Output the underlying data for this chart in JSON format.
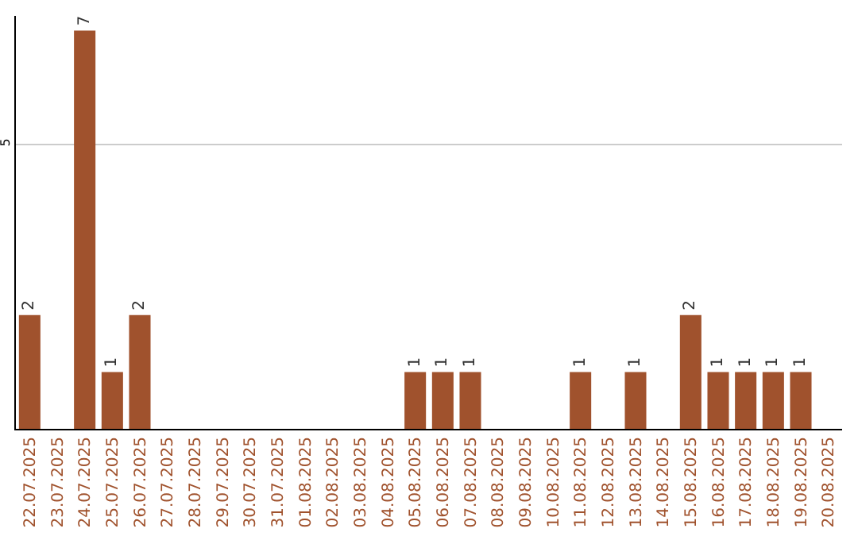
{
  "chart_data": {
    "type": "bar",
    "categories": [
      "22.07.2025",
      "23.07.2025",
      "24.07.2025",
      "25.07.2025",
      "26.07.2025",
      "27.07.2025",
      "28.07.2025",
      "29.07.2025",
      "30.07.2025",
      "31.07.2025",
      "01.08.2025",
      "02.08.2025",
      "03.08.2025",
      "04.08.2025",
      "05.08.2025",
      "06.08.2025",
      "07.08.2025",
      "08.08.2025",
      "09.08.2025",
      "10.08.2025",
      "11.08.2025",
      "12.08.2025",
      "13.08.2025",
      "14.08.2025",
      "15.08.2025",
      "16.08.2025",
      "17.08.2025",
      "18.08.2025",
      "19.08.2025",
      "20.08.2025"
    ],
    "values": [
      2,
      0,
      7,
      1,
      2,
      0,
      0,
      0,
      0,
      0,
      0,
      0,
      0,
      0,
      1,
      1,
      1,
      0,
      0,
      0,
      1,
      0,
      1,
      0,
      2,
      1,
      1,
      1,
      1,
      0
    ],
    "value_labels": [
      "2",
      null,
      "7",
      "1",
      "2",
      null,
      null,
      null,
      null,
      null,
      null,
      null,
      null,
      null,
      "1",
      "1",
      "1",
      null,
      null,
      null,
      "1",
      null,
      "1",
      null,
      "2",
      "1",
      "1",
      "1",
      "1",
      null
    ],
    "color": "#a0522d",
    "ylim": [
      0,
      7.26
    ],
    "yticks": [
      5
    ],
    "grid": "y"
  }
}
